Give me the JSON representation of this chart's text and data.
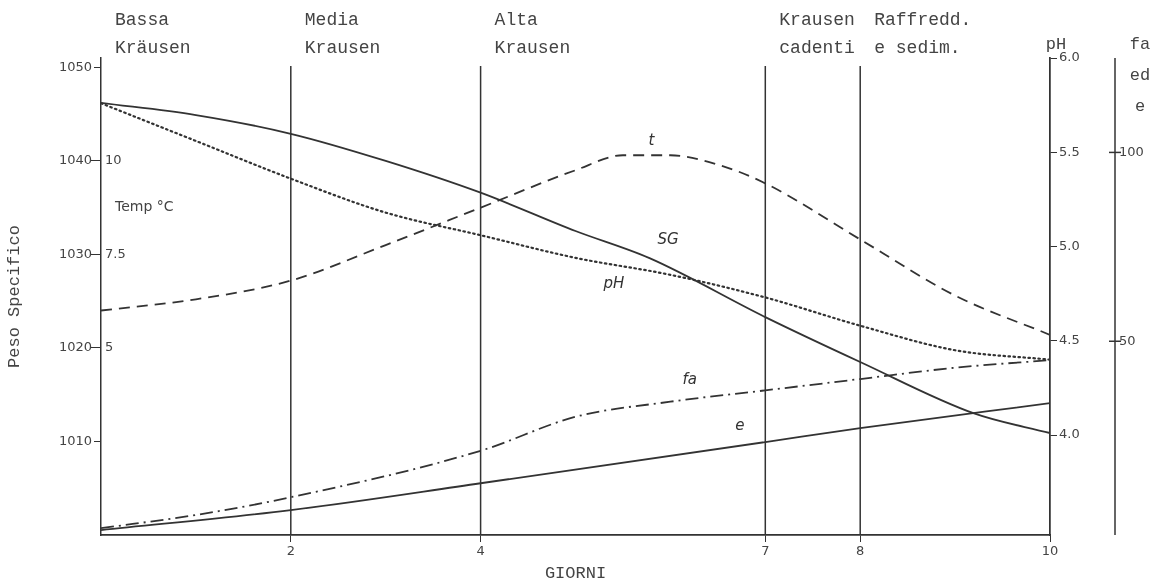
{
  "chart_data": [
    {
      "type": "line",
      "xlabel": "GIORNI",
      "ylabel": "Peso Specifico",
      "y2label": "Temp °C",
      "y3label": "pH",
      "xlim": [
        0,
        10
      ],
      "xticks": [
        2,
        4,
        7,
        8,
        10
      ],
      "ylim": [
        1000,
        1051
      ],
      "yticks": [
        1010,
        1020,
        1030,
        1040,
        1050
      ],
      "y2lim": [
        0,
        12.75
      ],
      "y2ticks": [
        5,
        7.5,
        10
      ],
      "y3lim": [
        3.47,
        6.0
      ],
      "y3ticks": [
        {
          "value": 4,
          "label": "4.0"
        },
        4.5,
        {
          "value": 5,
          "label": "5.0"
        },
        5.5,
        {
          "value": 6,
          "label": "6.0"
        }
      ],
      "marker": "none",
      "series": [
        {
          "name": "SG",
          "color": "#333333",
          "line_style": "solid",
          "x": [
            0,
            1,
            2,
            3,
            4,
            5,
            5.78,
            7,
            8,
            9.2,
            10
          ],
          "values": [
            1046.2,
            1044.9,
            1042.9,
            1040,
            1036.6,
            1032.5,
            1029.6,
            1023.3,
            1018.5,
            1013.0,
            1010.9
          ]
        },
        {
          "name": "pH",
          "color": "#333333",
          "line_style": "dotted",
          "axis": "y3",
          "x": [
            0,
            1,
            2,
            3,
            4,
            5,
            6,
            7,
            8,
            9,
            10
          ],
          "values": [
            5.76,
            5.56,
            5.36,
            5.18,
            5.06,
            4.94,
            4.85,
            4.73,
            4.58,
            4.45,
            4.4
          ]
        },
        {
          "name": "t",
          "color": "#333333",
          "line_style": "dashed",
          "axis": "y2",
          "x": [
            0,
            1,
            2,
            3,
            4,
            5,
            5.5,
            6,
            6.5,
            7,
            8,
            9,
            10
          ],
          "values": [
            6.0,
            6.3,
            6.8,
            7.75,
            8.75,
            9.75,
            10.15,
            10.15,
            9.9,
            9.4,
            7.9,
            6.4,
            5.35
          ]
        }
      ],
      "ref_lines": [
        {
          "axis": "x",
          "value": 2
        },
        {
          "axis": "x",
          "value": 4
        },
        {
          "axis": "x",
          "value": 7
        },
        {
          "axis": "x",
          "value": 8
        }
      ],
      "annotations": [
        "Bassa Kräusen",
        "Media Krausen",
        "Alta Krausen",
        "Krausen cadenti",
        "Raffredd. e sedim."
      ]
    },
    {
      "type": "line",
      "ylabel": "fa ed e",
      "xlim": [
        0,
        10
      ],
      "ylim": [
        -1.3,
        125
      ],
      "yticks": [
        50,
        100
      ],
      "tick_labels": "y",
      "marker": "none",
      "series": [
        {
          "name": "fa",
          "color": "#333333",
          "line_style": "dashdot",
          "x": [
            0,
            1,
            2,
            4,
            5,
            6,
            7,
            8,
            9,
            10
          ],
          "values": [
            0.5,
            4,
            8.7,
            21,
            30,
            34,
            37,
            40,
            43,
            45
          ]
        },
        {
          "name": "e",
          "color": "#333333",
          "line_style": "solid",
          "x": [
            0,
            2,
            4,
            7,
            8,
            10
          ],
          "values": [
            0,
            5.3,
            12.4,
            23.3,
            27,
            33.6
          ]
        }
      ]
    }
  ]
}
